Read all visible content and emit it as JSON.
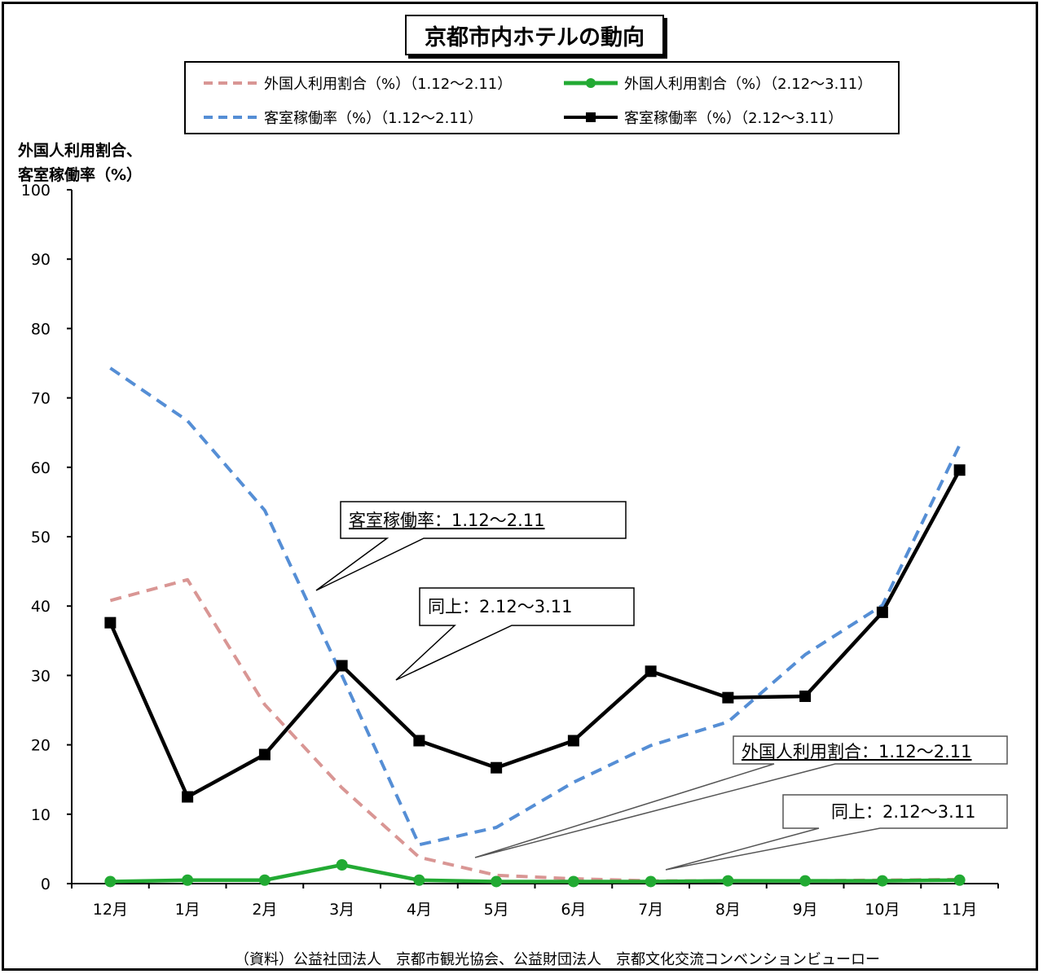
{
  "title": "京都市内ホテルの動向",
  "legend": {
    "items": [
      {
        "label": "外国人利用割合（%）（1.12～2.11）"
      },
      {
        "label": "外国人利用割合（%）（2.12～3.11）"
      },
      {
        "label": "客室稼働率（%）（1.12～2.11）"
      },
      {
        "label": "客室稼働率（%）（2.12～3.11）"
      }
    ]
  },
  "ylabel_line1": "外国人利用割合、",
  "ylabel_line2": "客室稼働率（%）",
  "callouts": {
    "occ_prev": "客室稼働率：1.12～2.11",
    "occ_curr": "同上：2.12～3.11",
    "for_prev": "外国人利用割合：1.12～2.11",
    "for_curr": "同上：2.12～3.11"
  },
  "source": "（資料）公益社団法人　京都市観光協会、公益財団法人　京都文化交流コンベンションビューロー",
  "chart_data": {
    "type": "line",
    "title": "京都市内ホテルの動向",
    "ylabel": "外国人利用割合、客室稼働率（%）",
    "categories": [
      "12月",
      "1月",
      "2月",
      "3月",
      "4月",
      "5月",
      "6月",
      "7月",
      "8月",
      "9月",
      "10月",
      "11月"
    ],
    "ylim": [
      0,
      100
    ],
    "yticks": [
      0,
      10,
      20,
      30,
      40,
      50,
      60,
      70,
      80,
      90,
      100
    ],
    "grid": false,
    "legend_position": "top",
    "series": [
      {
        "name": "外国人利用割合（%）（1.12～2.11）",
        "color": "#d99694",
        "style": "dashed",
        "values": [
          40.8,
          43.8,
          25.8,
          13.8,
          3.8,
          1.2,
          0.7,
          0.4,
          0.4,
          0.4,
          0.5,
          0.6
        ]
      },
      {
        "name": "外国人利用割合（%）（2.12～3.11）",
        "color": "#22aa33",
        "style": "solid-marker",
        "values": [
          0.3,
          0.5,
          0.5,
          2.7,
          0.5,
          0.3,
          0.3,
          0.3,
          0.4,
          0.4,
          0.4,
          0.5
        ]
      },
      {
        "name": "客室稼働率（%）（1.12～2.11）",
        "color": "#558ed5",
        "style": "dashed",
        "values": [
          74.3,
          66.7,
          53.8,
          30.0,
          5.6,
          8.1,
          14.6,
          19.9,
          23.3,
          33.0,
          40.1,
          63.2
        ]
      },
      {
        "name": "客室稼働率（%）（2.12～3.11）",
        "color": "#000000",
        "style": "solid-marker",
        "values": [
          37.6,
          12.5,
          18.6,
          31.4,
          20.6,
          16.7,
          20.6,
          30.6,
          26.8,
          27.0,
          39.1,
          59.6
        ]
      }
    ]
  }
}
